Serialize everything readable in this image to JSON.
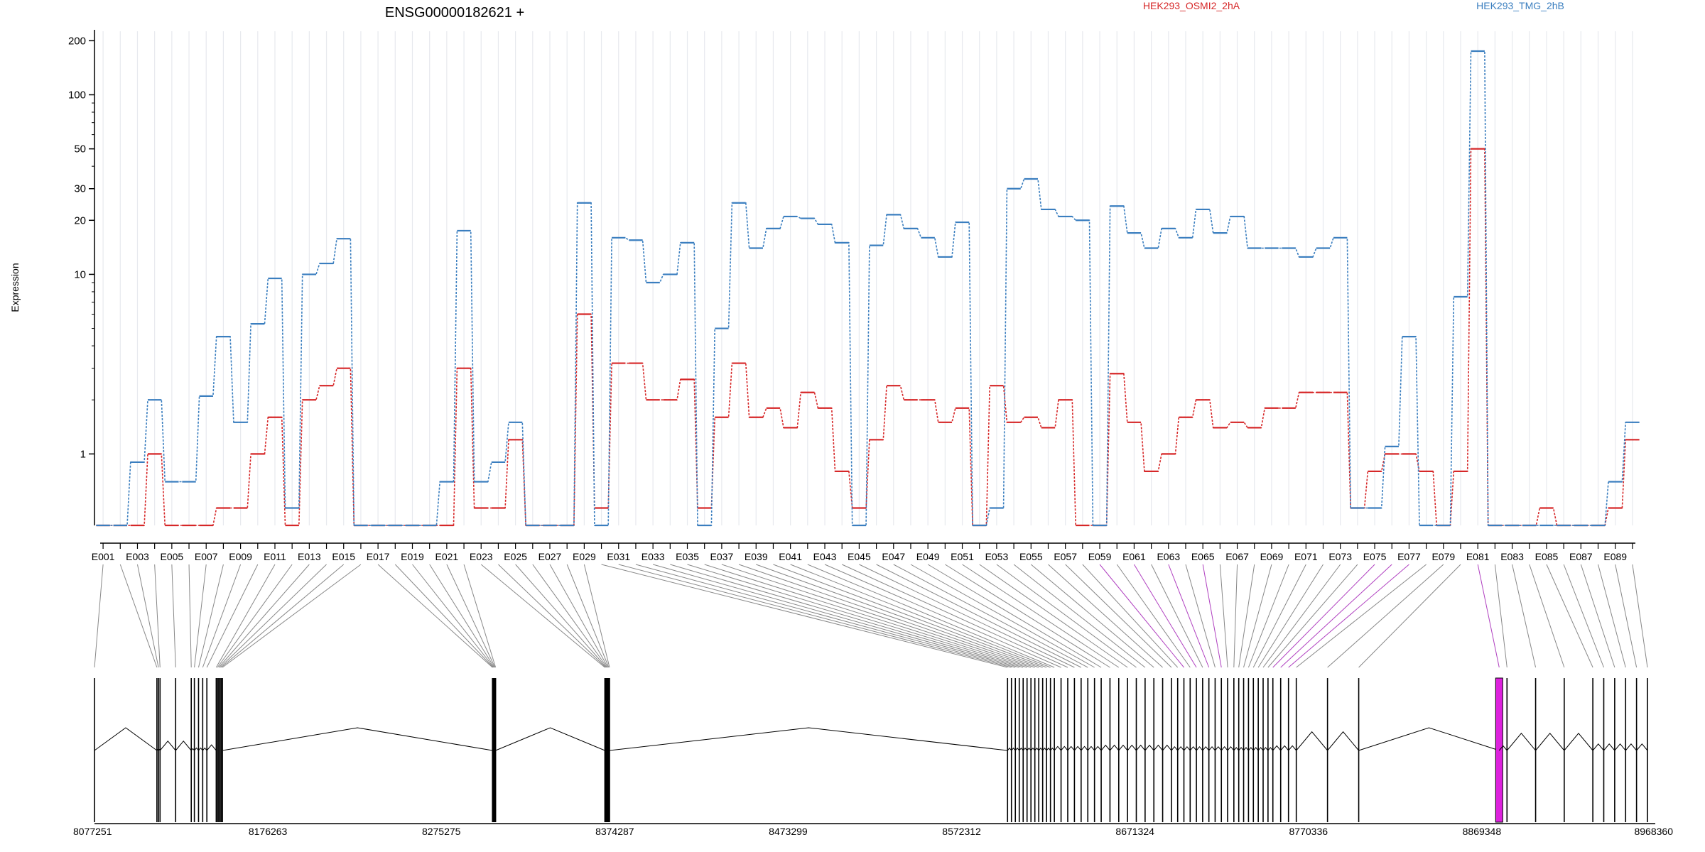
{
  "chart_data": {
    "type": "line",
    "title": "ENSG00000182621 +",
    "ylabel": "Expression",
    "xlabel": "",
    "yscale": "log",
    "ylim": [
      0.4,
      210
    ],
    "yticks": [
      1,
      10,
      20,
      30,
      50,
      100,
      200
    ],
    "ytick_labels": [
      "1",
      "10",
      "20",
      "30",
      "50",
      "100",
      "200"
    ],
    "exon_labels_shown": [
      "E001",
      "E003",
      "E005",
      "E007",
      "E009",
      "E011",
      "E013",
      "E015",
      "E017",
      "E019",
      "E021",
      "E023",
      "E025",
      "E027",
      "E029",
      "E031",
      "E033",
      "E035",
      "E037",
      "E039",
      "E041",
      "E043",
      "E045",
      "E047",
      "E049",
      "E051",
      "E053",
      "E055",
      "E057",
      "E059",
      "E061",
      "E063",
      "E065",
      "E067",
      "E069",
      "E071",
      "E073",
      "E075",
      "E077",
      "E079",
      "E081",
      "E083",
      "E085",
      "E087",
      "E089"
    ],
    "exon_count": 90,
    "legend_placement": "top",
    "series": [
      {
        "name": "HEK293_OSMI2_2hA",
        "color": "#d62728",
        "values": [
          0.4,
          0.4,
          0.4,
          1.0,
          0.4,
          0.4,
          0.4,
          0.5,
          0.5,
          1.0,
          1.6,
          0.4,
          2.0,
          2.4,
          3.0,
          0.4,
          0.4,
          0.4,
          0.4,
          0.4,
          0.4,
          3.0,
          0.5,
          0.5,
          1.2,
          0.4,
          0.4,
          0.4,
          6.0,
          0.5,
          3.2,
          3.2,
          2.0,
          2.0,
          2.6,
          0.5,
          1.6,
          3.2,
          1.6,
          1.8,
          1.4,
          2.2,
          1.8,
          0.8,
          0.5,
          1.2,
          2.4,
          2.0,
          2.0,
          1.5,
          1.8,
          0.4,
          2.4,
          1.5,
          1.6,
          1.4,
          2.0,
          0.4,
          0.4,
          2.8,
          1.5,
          0.8,
          1.0,
          1.6,
          2.0,
          1.4,
          1.5,
          1.4,
          1.8,
          1.8,
          2.2,
          2.2,
          2.2,
          0.5,
          0.8,
          1.0,
          1.0,
          0.8,
          0.4,
          0.8,
          50.0,
          0.4,
          0.4,
          0.4,
          0.5,
          0.4,
          0.4,
          0.4,
          0.5,
          1.2
        ]
      },
      {
        "name": "HEK293_TMG_2hB",
        "color": "#3a7ebf",
        "values": [
          0.4,
          0.4,
          0.9,
          2.0,
          0.7,
          0.7,
          2.1,
          4.5,
          1.5,
          5.3,
          9.5,
          0.5,
          10.0,
          11.5,
          15.8,
          0.4,
          0.4,
          0.4,
          0.4,
          0.4,
          0.7,
          17.5,
          0.7,
          0.9,
          1.5,
          0.4,
          0.4,
          0.4,
          25.0,
          0.4,
          16.0,
          15.5,
          9.0,
          10.0,
          15.0,
          0.4,
          5.0,
          25.0,
          14.0,
          18.0,
          21.0,
          20.5,
          19.0,
          15.0,
          0.4,
          14.5,
          21.5,
          18.0,
          16.0,
          12.5,
          19.5,
          0.4,
          0.5,
          30.0,
          34.0,
          23.0,
          21.0,
          20.0,
          0.4,
          24.0,
          17.0,
          14.0,
          18.0,
          16.0,
          23.0,
          17.0,
          21.0,
          14.0,
          14.0,
          14.0,
          12.5,
          14.0,
          16.0,
          0.5,
          0.5,
          1.1,
          4.5,
          0.4,
          0.4,
          7.5,
          175.0,
          0.4,
          0.4,
          0.4,
          0.4,
          0.4,
          0.4,
          0.4,
          0.7,
          1.5
        ]
      }
    ],
    "genomic_ticks": [
      "8077251",
      "8176263",
      "8275275",
      "8374287",
      "8473299",
      "8572312",
      "8671324",
      "8770336",
      "8869348",
      "8968360"
    ],
    "genomic_range": [
      8077251,
      8968360
    ],
    "highlighted_exons": [
      81
    ],
    "highlight_color": "#dd22dd"
  }
}
